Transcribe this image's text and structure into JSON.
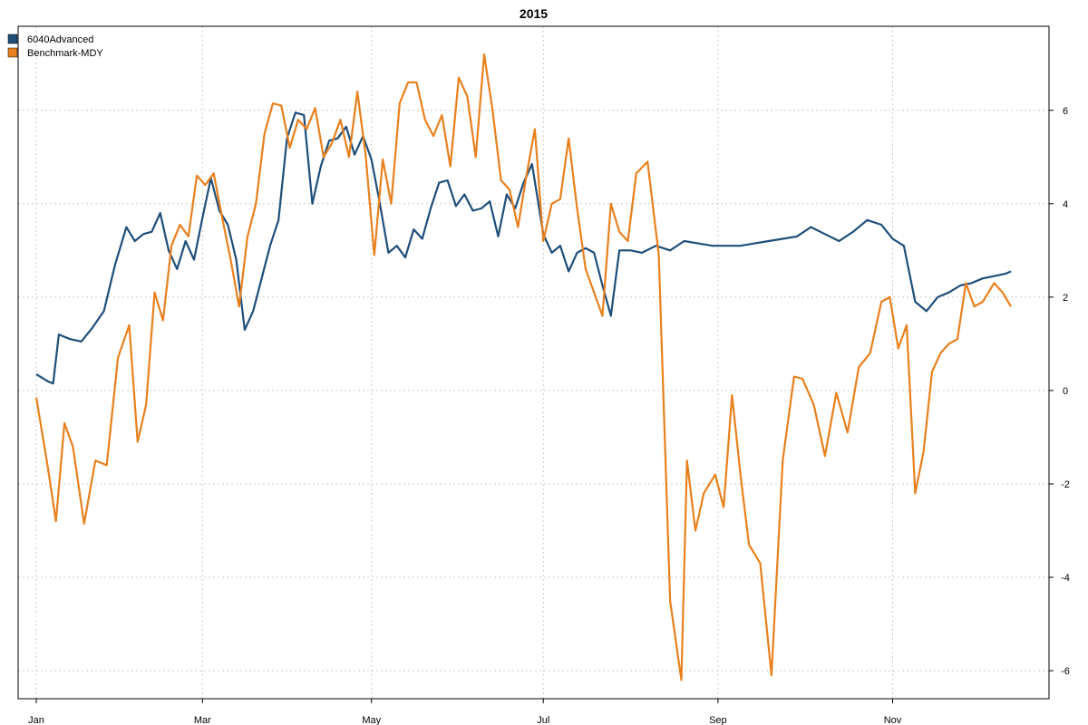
{
  "chart_data": {
    "type": "line",
    "title": "2015",
    "xlabel": "",
    "ylabel": "",
    "x_tick_labels": [
      "Jan",
      "Mar",
      "May",
      "Jul",
      "Sep",
      "Nov"
    ],
    "x_tick_dates": [
      "2015-01-02",
      "2015-03-02",
      "2015-05-01",
      "2015-07-01",
      "2015-09-01",
      "2015-11-02"
    ],
    "xlim": [
      "2015-01-02",
      "2015-12-14"
    ],
    "y_ticks": [
      -6,
      -4,
      -2,
      0,
      2,
      4,
      6
    ],
    "ylim": [
      -6.6,
      7.8
    ],
    "grid": true,
    "legend_position": "top-left",
    "y_axis_side": "right",
    "series": [
      {
        "name": "6040Advanced",
        "color": "#1f4e79",
        "x": [
          "2015-01-02",
          "2015-01-06",
          "2015-01-08",
          "2015-01-10",
          "2015-01-14",
          "2015-01-18",
          "2015-01-22",
          "2015-01-26",
          "2015-01-30",
          "2015-02-03",
          "2015-02-06",
          "2015-02-09",
          "2015-02-12",
          "2015-02-15",
          "2015-02-18",
          "2015-02-21",
          "2015-02-24",
          "2015-02-27",
          "2015-03-02",
          "2015-03-05",
          "2015-03-08",
          "2015-03-11",
          "2015-03-14",
          "2015-03-17",
          "2015-03-20",
          "2015-03-23",
          "2015-03-26",
          "2015-03-29",
          "2015-04-01",
          "2015-04-04",
          "2015-04-07",
          "2015-04-10",
          "2015-04-13",
          "2015-04-16",
          "2015-04-19",
          "2015-04-22",
          "2015-04-25",
          "2015-04-28",
          "2015-05-01",
          "2015-05-04",
          "2015-05-07",
          "2015-05-10",
          "2015-05-13",
          "2015-05-16",
          "2015-05-19",
          "2015-05-22",
          "2015-05-25",
          "2015-05-28",
          "2015-05-31",
          "2015-06-03",
          "2015-06-06",
          "2015-06-09",
          "2015-06-12",
          "2015-06-15",
          "2015-06-18",
          "2015-06-21",
          "2015-06-24",
          "2015-06-27",
          "2015-07-01",
          "2015-07-04",
          "2015-07-07",
          "2015-07-10",
          "2015-07-13",
          "2015-07-16",
          "2015-07-19",
          "2015-07-22",
          "2015-07-25",
          "2015-07-28",
          "2015-08-01",
          "2015-08-05",
          "2015-08-10",
          "2015-08-15",
          "2015-08-20",
          "2015-08-25",
          "2015-08-30",
          "2015-09-04",
          "2015-09-09",
          "2015-09-14",
          "2015-09-19",
          "2015-09-24",
          "2015-09-29",
          "2015-10-04",
          "2015-10-09",
          "2015-10-14",
          "2015-10-19",
          "2015-10-24",
          "2015-10-29",
          "2015-11-02",
          "2015-11-06",
          "2015-11-10",
          "2015-11-14",
          "2015-11-18",
          "2015-11-22",
          "2015-11-26",
          "2015-11-30",
          "2015-12-04",
          "2015-12-08",
          "2015-12-12",
          "2015-12-14"
        ],
        "y": [
          0.35,
          0.2,
          0.15,
          1.2,
          1.1,
          1.05,
          1.35,
          1.7,
          2.7,
          3.5,
          3.2,
          3.35,
          3.4,
          3.8,
          3.0,
          2.6,
          3.2,
          2.8,
          3.7,
          4.55,
          3.85,
          3.55,
          2.8,
          1.3,
          1.7,
          2.4,
          3.1,
          3.65,
          5.4,
          5.95,
          5.9,
          4.0,
          4.8,
          5.35,
          5.4,
          5.65,
          5.05,
          5.45,
          4.95,
          4.0,
          2.95,
          3.1,
          2.85,
          3.45,
          3.25,
          3.9,
          4.45,
          4.5,
          3.95,
          4.2,
          3.85,
          3.9,
          4.05,
          3.3,
          4.2,
          3.9,
          4.45,
          4.85,
          3.35,
          2.95,
          3.1,
          2.55,
          2.95,
          3.05,
          2.95,
          2.25,
          1.6,
          3.0,
          3.0,
          2.95,
          3.1,
          3.0,
          3.2,
          3.15,
          3.1,
          3.1,
          3.1,
          3.15,
          3.2,
          3.25,
          3.3,
          3.5,
          3.35,
          3.2,
          3.4,
          3.65,
          3.55,
          3.25,
          3.1,
          1.9,
          1.7,
          2.0,
          2.1,
          2.25,
          2.3,
          2.4,
          2.45,
          2.5,
          2.55
        ]
      },
      {
        "name": "Benchmark-MDY",
        "color": "#e8801e",
        "x": [
          "2015-01-02",
          "2015-01-06",
          "2015-01-09",
          "2015-01-12",
          "2015-01-15",
          "2015-01-19",
          "2015-01-23",
          "2015-01-27",
          "2015-01-31",
          "2015-02-04",
          "2015-02-07",
          "2015-02-10",
          "2015-02-13",
          "2015-02-16",
          "2015-02-19",
          "2015-02-22",
          "2015-02-25",
          "2015-02-28",
          "2015-03-03",
          "2015-03-06",
          "2015-03-09",
          "2015-03-12",
          "2015-03-15",
          "2015-03-18",
          "2015-03-21",
          "2015-03-24",
          "2015-03-27",
          "2015-03-30",
          "2015-04-02",
          "2015-04-05",
          "2015-04-08",
          "2015-04-11",
          "2015-04-14",
          "2015-04-17",
          "2015-04-20",
          "2015-04-23",
          "2015-04-26",
          "2015-04-29",
          "2015-05-02",
          "2015-05-05",
          "2015-05-08",
          "2015-05-11",
          "2015-05-14",
          "2015-05-17",
          "2015-05-20",
          "2015-05-23",
          "2015-05-26",
          "2015-05-29",
          "2015-06-01",
          "2015-06-04",
          "2015-06-07",
          "2015-06-10",
          "2015-06-13",
          "2015-06-16",
          "2015-06-19",
          "2015-06-22",
          "2015-06-25",
          "2015-06-28",
          "2015-07-01",
          "2015-07-04",
          "2015-07-07",
          "2015-07-10",
          "2015-07-13",
          "2015-07-16",
          "2015-07-19",
          "2015-07-22",
          "2015-07-25",
          "2015-07-28",
          "2015-07-31",
          "2015-08-03",
          "2015-08-07",
          "2015-08-11",
          "2015-08-15",
          "2015-08-19",
          "2015-08-21",
          "2015-08-24",
          "2015-08-27",
          "2015-08-31",
          "2015-09-03",
          "2015-09-06",
          "2015-09-09",
          "2015-09-12",
          "2015-09-16",
          "2015-09-20",
          "2015-09-24",
          "2015-09-28",
          "2015-10-01",
          "2015-10-05",
          "2015-10-09",
          "2015-10-13",
          "2015-10-17",
          "2015-10-21",
          "2015-10-25",
          "2015-10-29",
          "2015-11-01",
          "2015-11-04",
          "2015-11-07",
          "2015-11-10",
          "2015-11-13",
          "2015-11-16",
          "2015-11-19",
          "2015-11-22",
          "2015-11-25",
          "2015-11-28",
          "2015-12-01",
          "2015-12-04",
          "2015-12-08",
          "2015-12-11",
          "2015-12-14"
        ],
        "y": [
          -0.15,
          -1.6,
          -2.8,
          -0.7,
          -1.2,
          -2.85,
          -1.5,
          -1.6,
          0.7,
          1.4,
          -1.1,
          -0.3,
          2.1,
          1.5,
          3.1,
          3.55,
          3.3,
          4.6,
          4.4,
          4.65,
          3.7,
          2.8,
          1.8,
          3.3,
          4.0,
          5.5,
          6.15,
          6.1,
          5.2,
          5.8,
          5.6,
          6.05,
          5.0,
          5.3,
          5.8,
          5.0,
          6.4,
          5.0,
          2.9,
          4.95,
          4.0,
          6.15,
          6.6,
          6.6,
          5.8,
          5.45,
          5.9,
          4.8,
          6.7,
          6.3,
          5.0,
          7.2,
          6.0,
          4.5,
          4.3,
          3.5,
          4.6,
          5.6,
          3.2,
          4.0,
          4.1,
          5.4,
          3.9,
          2.6,
          2.1,
          1.6,
          4.0,
          3.4,
          3.2,
          4.65,
          4.9,
          2.9,
          -4.5,
          -6.2,
          -1.5,
          -3.0,
          -2.2,
          -1.8,
          -2.5,
          -0.1,
          -1.8,
          -3.3,
          -3.7,
          -6.1,
          -1.5,
          0.3,
          0.25,
          -0.3,
          -1.4,
          -0.05,
          -0.9,
          0.5,
          0.8,
          1.9,
          2.0,
          0.9,
          1.4,
          -2.2,
          -1.3,
          0.4,
          0.8,
          1.0,
          1.1,
          2.3,
          1.8,
          1.9,
          2.3,
          2.1,
          1.8
        ]
      }
    ]
  }
}
